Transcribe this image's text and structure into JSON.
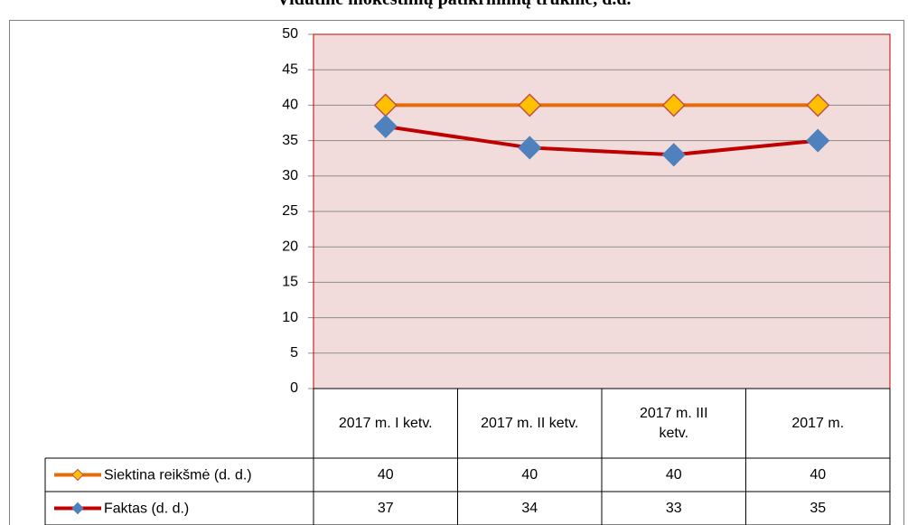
{
  "chart_data": {
    "type": "line",
    "title": "Vidutinė mokestinių patikrinimų trukmė, d.d.",
    "categories": [
      "2017 m. I ketv.",
      "2017 m. II ketv.",
      "2017 m. III ketv.",
      "2017 m."
    ],
    "series": [
      {
        "name": "Siektina reikšmė (d. d.)",
        "color": "#e46c0a",
        "marker_color": "#ffc000",
        "marker_edge": "#c0504d",
        "values": [
          40,
          40,
          40,
          40
        ]
      },
      {
        "name": "Faktas (d. d.)",
        "color": "#c00000",
        "marker_color": "#4f81bd",
        "marker_edge": "#4f81bd",
        "values": [
          37,
          34,
          33,
          35
        ]
      }
    ],
    "ylim": [
      0,
      50
    ],
    "yticks": [
      0,
      5,
      10,
      15,
      20,
      25,
      30,
      35,
      40,
      45,
      50
    ],
    "grid": true,
    "plot_background": "#f2dcdb",
    "data_table": true
  }
}
